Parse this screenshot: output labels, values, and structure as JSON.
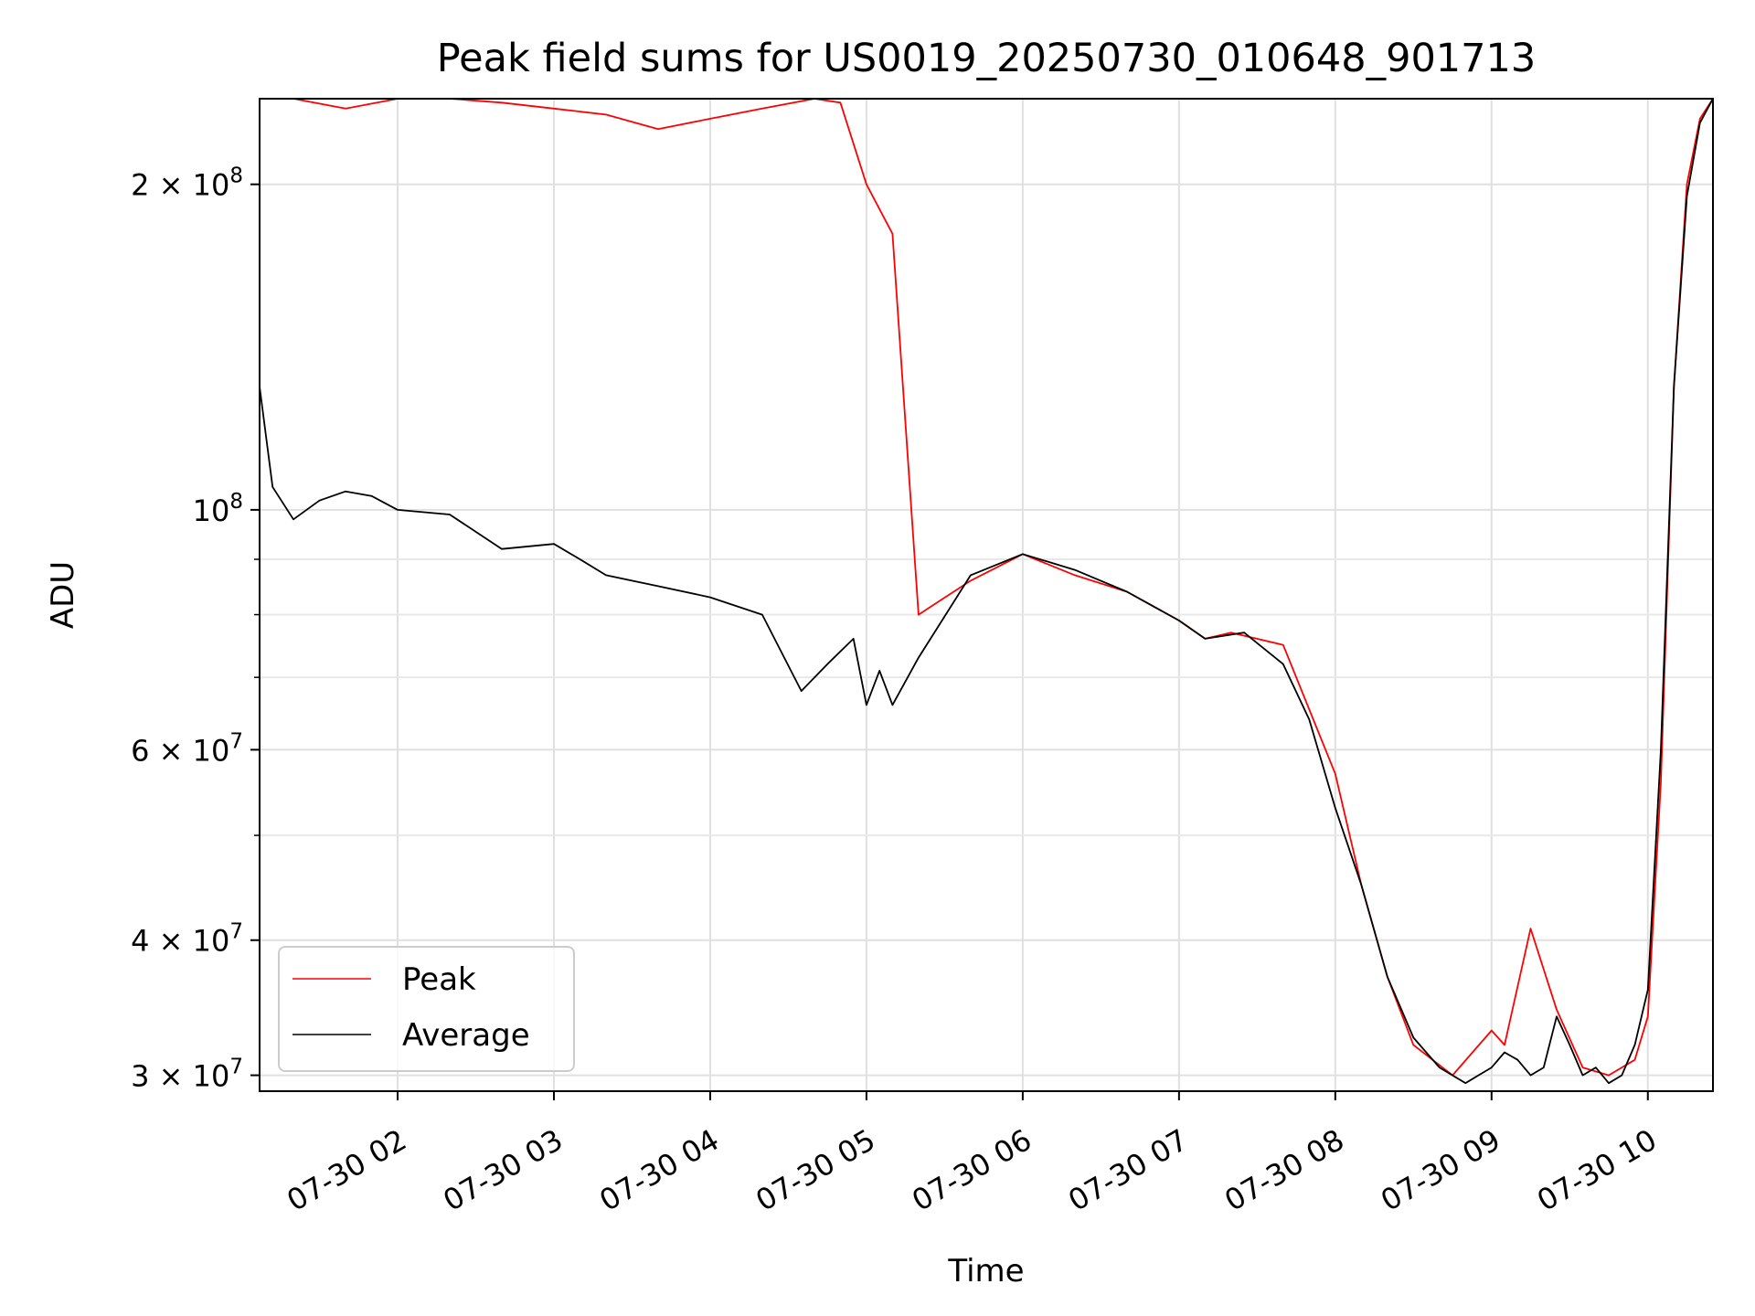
{
  "chart_data": {
    "type": "line",
    "title": "Peak field sums for US0019_20250730_010648_901713",
    "xlabel": "Time",
    "ylabel": "ADU",
    "yscale": "log",
    "xlim": [
      "2025-07-30T01:07",
      "2025-07-30T10:25"
    ],
    "ylim": [
      29000000,
      240000000
    ],
    "grid": true,
    "legend": "lower-left",
    "x_ticks": [
      {
        "t": "2025-07-30T02:00",
        "label": "07-30 02"
      },
      {
        "t": "2025-07-30T03:00",
        "label": "07-30 03"
      },
      {
        "t": "2025-07-30T04:00",
        "label": "07-30 04"
      },
      {
        "t": "2025-07-30T05:00",
        "label": "07-30 05"
      },
      {
        "t": "2025-07-30T06:00",
        "label": "07-30 06"
      },
      {
        "t": "2025-07-30T07:00",
        "label": "07-30 07"
      },
      {
        "t": "2025-07-30T08:00",
        "label": "07-30 08"
      },
      {
        "t": "2025-07-30T09:00",
        "label": "07-30 09"
      },
      {
        "t": "2025-07-30T10:00",
        "label": "07-30 10"
      }
    ],
    "y_ticks": [
      {
        "value": 30000000,
        "mantissa": "3",
        "exponent": "7"
      },
      {
        "value": 40000000,
        "mantissa": "4",
        "exponent": "7"
      },
      {
        "value": 60000000,
        "mantissa": "6",
        "exponent": "7"
      },
      {
        "value": 100000000,
        "mantissa": "",
        "exponent": "8"
      },
      {
        "value": 200000000,
        "mantissa": "2",
        "exponent": "8"
      }
    ],
    "y_minor_ticks": [
      50000000,
      70000000,
      80000000,
      90000000
    ],
    "series": [
      {
        "name": "Peak",
        "color": "#ff0000",
        "x": [
          "2025-07-30T01:07",
          "2025-07-30T01:20",
          "2025-07-30T01:40",
          "2025-07-30T02:00",
          "2025-07-30T02:20",
          "2025-07-30T02:40",
          "2025-07-30T03:00",
          "2025-07-30T03:20",
          "2025-07-30T03:40",
          "2025-07-30T04:00",
          "2025-07-30T04:20",
          "2025-07-30T04:40",
          "2025-07-30T04:50",
          "2025-07-30T05:00",
          "2025-07-30T05:10",
          "2025-07-30T05:20",
          "2025-07-30T05:40",
          "2025-07-30T06:00",
          "2025-07-30T06:20",
          "2025-07-30T06:40",
          "2025-07-30T07:00",
          "2025-07-30T07:10",
          "2025-07-30T07:20",
          "2025-07-30T07:40",
          "2025-07-30T08:00",
          "2025-07-30T08:10",
          "2025-07-30T08:20",
          "2025-07-30T08:30",
          "2025-07-30T08:45",
          "2025-07-30T09:00",
          "2025-07-30T09:05",
          "2025-07-30T09:15",
          "2025-07-30T09:25",
          "2025-07-30T09:35",
          "2025-07-30T09:45",
          "2025-07-30T09:55",
          "2025-07-30T10:00",
          "2025-07-30T10:05",
          "2025-07-30T10:10",
          "2025-07-30T10:15",
          "2025-07-30T10:20",
          "2025-07-30T10:25"
        ],
        "y": [
          240000000,
          240000000,
          235000000,
          240000000,
          240000000,
          238000000,
          235000000,
          232000000,
          225000000,
          230000000,
          235000000,
          240000000,
          238000000,
          200000000,
          180000000,
          80000000,
          86000000,
          91000000,
          87000000,
          84000000,
          79000000,
          76000000,
          77000000,
          75000000,
          57000000,
          45000000,
          37000000,
          32000000,
          30000000,
          33000000,
          32000000,
          41000000,
          34500000,
          30500000,
          30000000,
          31000000,
          34000000,
          56000000,
          130000000,
          200000000,
          230000000,
          240000000
        ]
      },
      {
        "name": "Average",
        "color": "#000000",
        "x": [
          "2025-07-30T01:07",
          "2025-07-30T01:12",
          "2025-07-30T01:20",
          "2025-07-30T01:30",
          "2025-07-30T01:40",
          "2025-07-30T01:50",
          "2025-07-30T02:00",
          "2025-07-30T02:20",
          "2025-07-30T02:40",
          "2025-07-30T03:00",
          "2025-07-30T03:10",
          "2025-07-30T03:20",
          "2025-07-30T03:40",
          "2025-07-30T04:00",
          "2025-07-30T04:20",
          "2025-07-30T04:35",
          "2025-07-30T04:45",
          "2025-07-30T04:55",
          "2025-07-30T05:00",
          "2025-07-30T05:05",
          "2025-07-30T05:10",
          "2025-07-30T05:20",
          "2025-07-30T05:40",
          "2025-07-30T06:00",
          "2025-07-30T06:20",
          "2025-07-30T06:40",
          "2025-07-30T07:00",
          "2025-07-30T07:10",
          "2025-07-30T07:25",
          "2025-07-30T07:40",
          "2025-07-30T07:50",
          "2025-07-30T08:00",
          "2025-07-30T08:10",
          "2025-07-30T08:20",
          "2025-07-30T08:30",
          "2025-07-30T08:40",
          "2025-07-30T08:50",
          "2025-07-30T08:55",
          "2025-07-30T09:00",
          "2025-07-30T09:05",
          "2025-07-30T09:10",
          "2025-07-30T09:15",
          "2025-07-30T09:20",
          "2025-07-30T09:25",
          "2025-07-30T09:30",
          "2025-07-30T09:35",
          "2025-07-30T09:40",
          "2025-07-30T09:45",
          "2025-07-30T09:50",
          "2025-07-30T09:55",
          "2025-07-30T10:00",
          "2025-07-30T10:05",
          "2025-07-30T10:10",
          "2025-07-30T10:15",
          "2025-07-30T10:20",
          "2025-07-30T10:25"
        ],
        "y": [
          130000000,
          105000000,
          98000000,
          102000000,
          104000000,
          103000000,
          100000000,
          99000000,
          92000000,
          93000000,
          90000000,
          87000000,
          85000000,
          83000000,
          80000000,
          68000000,
          72000000,
          76000000,
          66000000,
          71000000,
          66000000,
          73000000,
          87000000,
          91000000,
          88000000,
          84000000,
          79000000,
          76000000,
          77000000,
          72000000,
          64000000,
          53000000,
          45000000,
          37000000,
          32500000,
          30500000,
          29500000,
          30000000,
          30500000,
          31500000,
          31000000,
          30000000,
          30500000,
          34000000,
          32000000,
          30000000,
          30500000,
          29500000,
          30000000,
          32000000,
          36000000,
          60000000,
          130000000,
          195000000,
          228000000,
          240000000
        ]
      }
    ]
  }
}
